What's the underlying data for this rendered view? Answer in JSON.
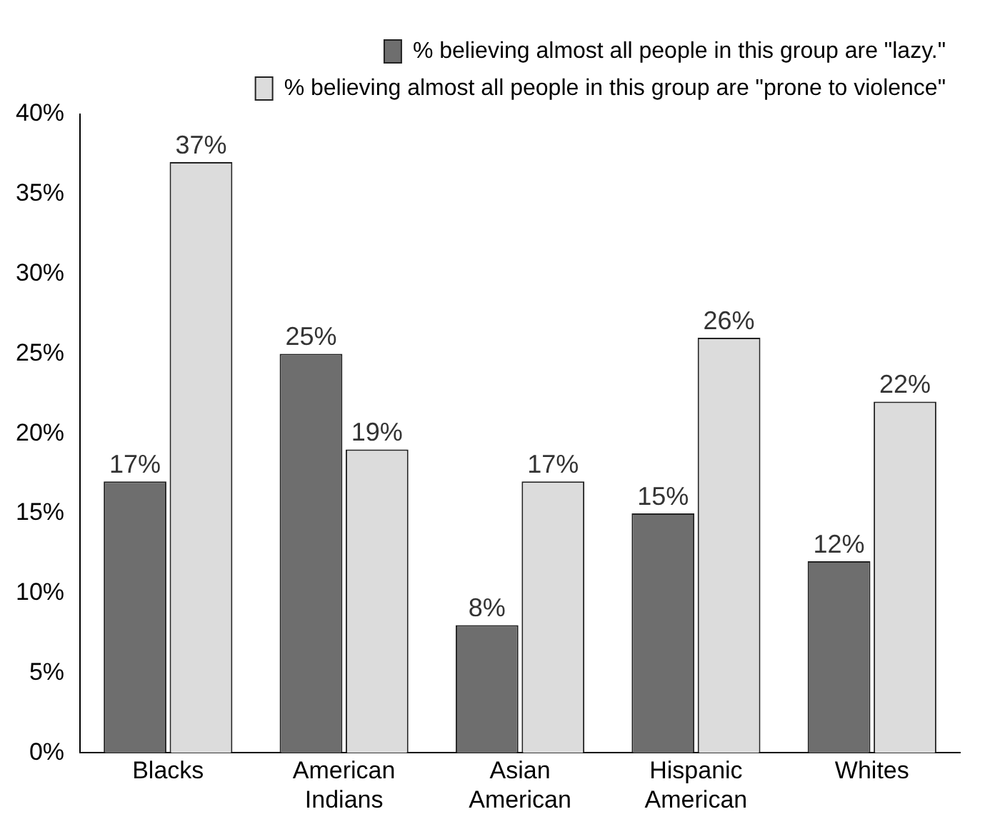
{
  "chart_data": {
    "type": "bar",
    "categories": [
      "Blacks",
      "American Indians",
      "Asian American",
      "Hispanic American",
      "Whites"
    ],
    "series": [
      {
        "name": "% believing almost all people in this group are \"lazy.\"",
        "color": "#6e6e6e",
        "values": [
          17,
          25,
          8,
          15,
          12
        ],
        "value_labels": [
          "17%",
          "25%",
          "8%",
          "15%",
          "12%"
        ]
      },
      {
        "name": "% believing almost all people in this group are \"prone to violence\"",
        "color": "#dcdcdc",
        "values": [
          37,
          19,
          17,
          26,
          22
        ],
        "value_labels": [
          "37%",
          "19%",
          "17%",
          "26%",
          "22%"
        ]
      }
    ],
    "ylim": [
      0,
      40
    ],
    "yticks": [
      {
        "value": 0,
        "label": "0%"
      },
      {
        "value": 5,
        "label": "5%"
      },
      {
        "value": 10,
        "label": "10%"
      },
      {
        "value": 15,
        "label": "15%"
      },
      {
        "value": 20,
        "label": "20%"
      },
      {
        "value": 25,
        "label": "25%"
      },
      {
        "value": 30,
        "label": "30%"
      },
      {
        "value": 35,
        "label": "35%"
      },
      {
        "value": 40,
        "label": "40%"
      }
    ],
    "grid": false,
    "legend": "top right"
  }
}
